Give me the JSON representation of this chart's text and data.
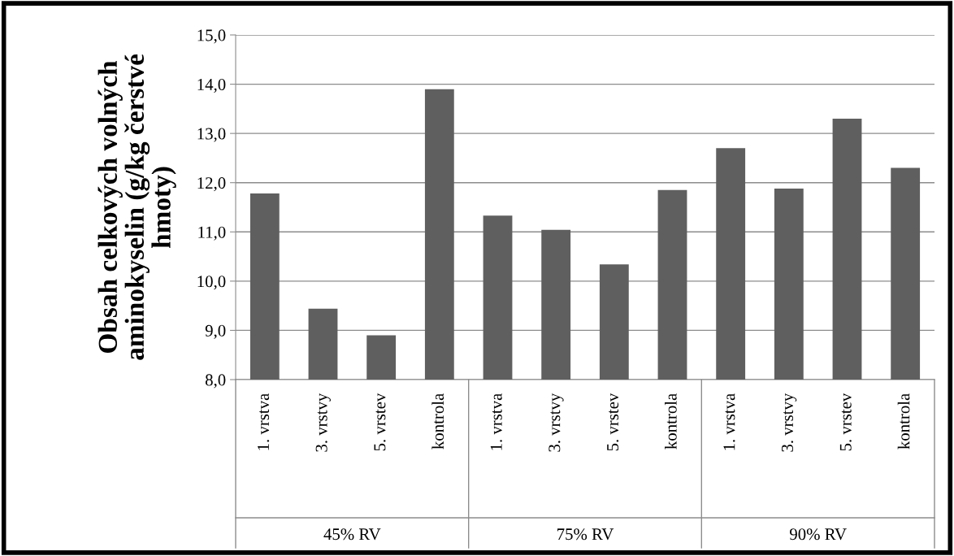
{
  "chart_data": {
    "type": "bar",
    "ylabel": "Obsah celkových volných\naminokyselin (g/kg čerstvé\nhmoty)",
    "categories": [
      "1. vrstva",
      "3. vrstvy",
      "5. vrstev",
      "kontrola",
      "1. vrstva",
      "3. vrstvy",
      "5. vrstev",
      "kontrola",
      "1. vrstva",
      "3. vrstvy",
      "5. vrstev",
      "kontrola"
    ],
    "values": [
      11.78,
      9.44,
      8.9,
      13.9,
      11.33,
      11.04,
      10.34,
      11.85,
      12.7,
      11.88,
      13.3,
      12.3
    ],
    "color": "#5f5f5f",
    "ylim": [
      8,
      15
    ],
    "yticks": [
      {
        "value": 8,
        "label": "8,0"
      },
      {
        "value": 9,
        "label": "9,0"
      },
      {
        "value": 10,
        "label": "10,0"
      },
      {
        "value": 11,
        "label": "11,0"
      },
      {
        "value": 12,
        "label": "12,0"
      },
      {
        "value": 13,
        "label": "13,0"
      },
      {
        "value": 14,
        "label": "14,0"
      },
      {
        "value": 15,
        "label": "15,0"
      }
    ],
    "grid": "y",
    "annotations": [
      "45% RV",
      "75% RV",
      "90% RV"
    ]
  }
}
